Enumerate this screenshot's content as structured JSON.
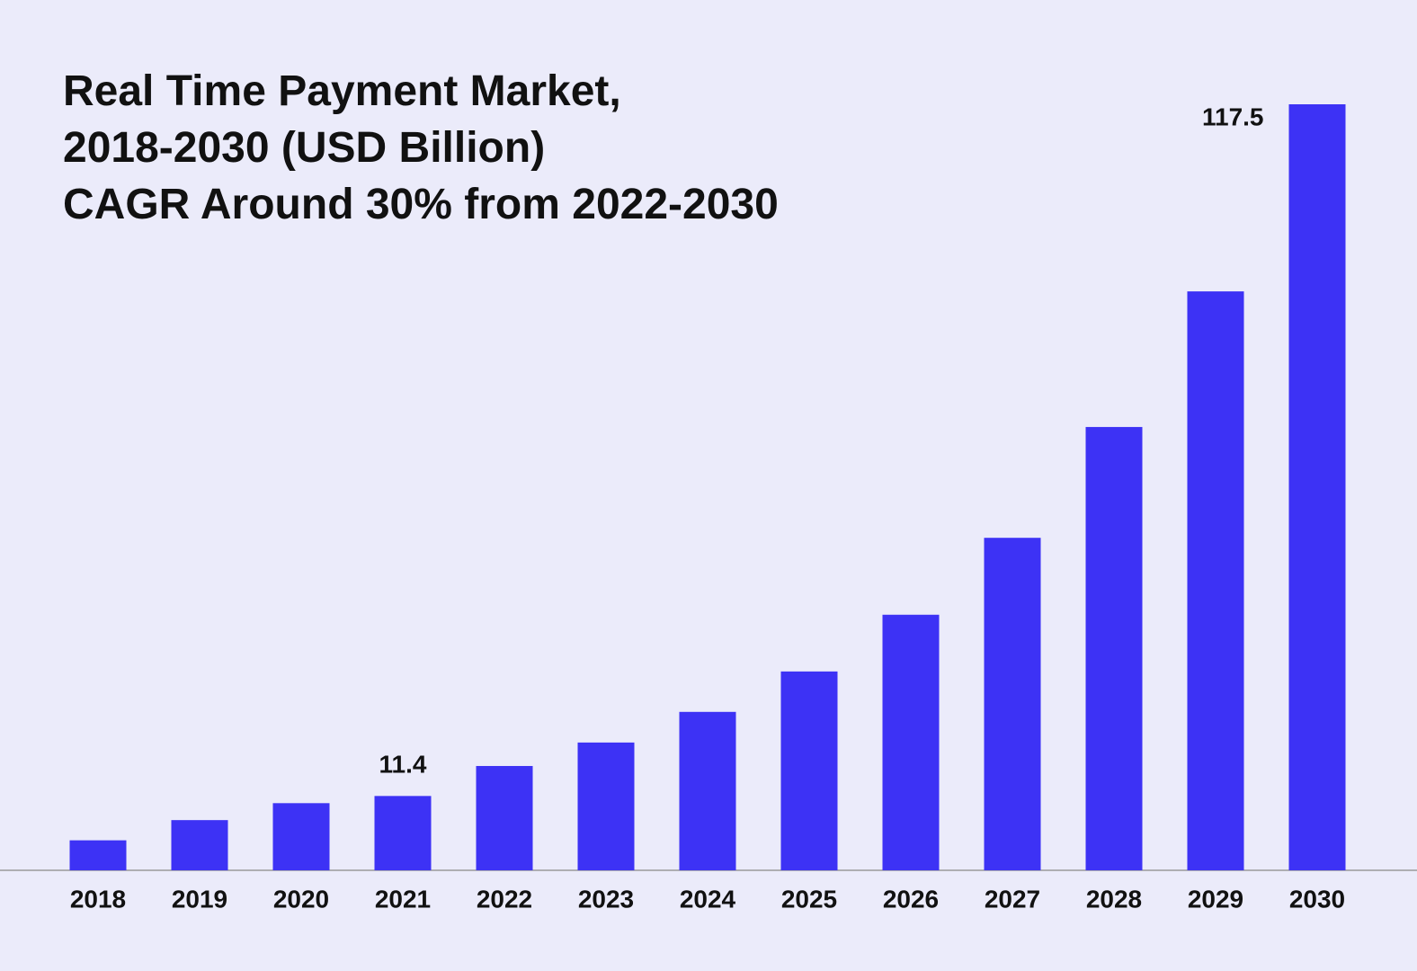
{
  "chart_data": {
    "type": "bar",
    "title": "Real Time Payment Market, 2018-2030 (USD Billion)",
    "subtitle": "CAGR Around 30% from 2022-2030",
    "categories": [
      "2018",
      "2019",
      "2020",
      "2021",
      "2022",
      "2023",
      "2024",
      "2025",
      "2026",
      "2027",
      "2028",
      "2029",
      "2030"
    ],
    "values": [
      4.6,
      7.7,
      10.3,
      11.4,
      16.0,
      19.6,
      24.3,
      30.5,
      39.2,
      51.0,
      68.0,
      88.8,
      117.5
    ],
    "value_labels": [
      null,
      null,
      null,
      "11.4",
      null,
      null,
      null,
      null,
      null,
      null,
      null,
      null,
      "117.5"
    ],
    "color": "#3d32f5"
  }
}
